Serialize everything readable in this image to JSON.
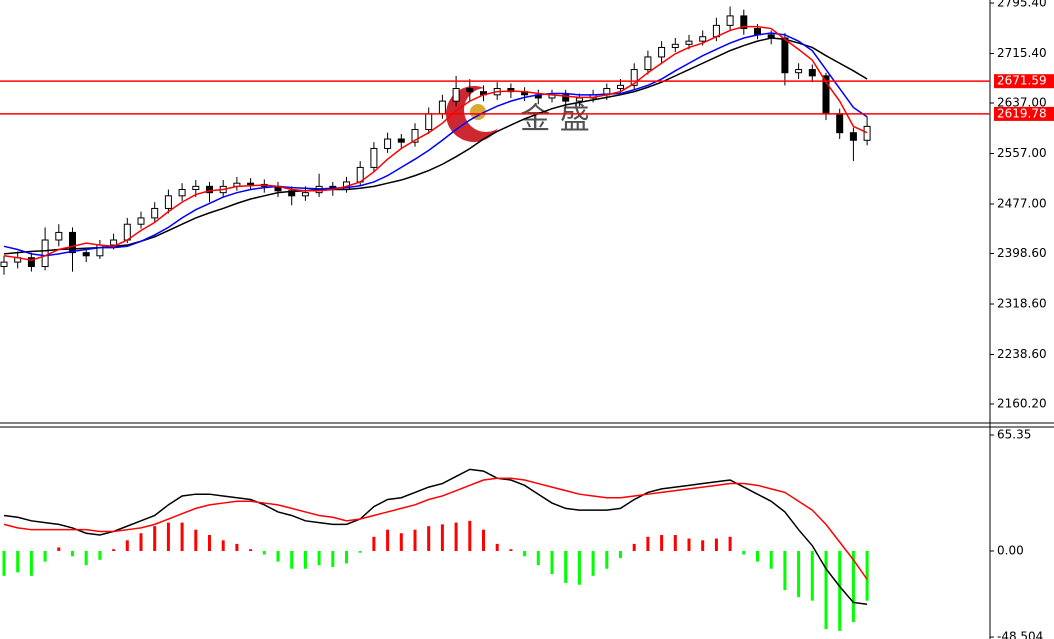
{
  "chart_data": [
    {
      "type": "candlestick",
      "up_color": "#ffffff",
      "down_color": "#000000",
      "edge_color": "#000000",
      "open": [
        2378,
        2385,
        2392,
        2378,
        2420,
        2432,
        2400,
        2395,
        2412,
        2420,
        2445,
        2455,
        2470,
        2490,
        2500,
        2505,
        2495,
        2505,
        2510,
        2508,
        2505,
        2498,
        2490,
        2495,
        2505,
        2500,
        2512,
        2535,
        2565,
        2580,
        2575,
        2595,
        2620,
        2640,
        2660,
        2655,
        2650,
        2660,
        2655,
        2650,
        2645,
        2650,
        2640,
        2645,
        2650,
        2660,
        2665,
        2690,
        2710,
        2725,
        2730,
        2735,
        2742,
        2760,
        2775,
        2755,
        2745,
        2740,
        2685,
        2690,
        2680,
        2620,
        2590,
        2578
      ],
      "high": [
        2395,
        2402,
        2400,
        2440,
        2445,
        2440,
        2408,
        2420,
        2430,
        2455,
        2465,
        2480,
        2500,
        2510,
        2515,
        2512,
        2515,
        2520,
        2518,
        2516,
        2512,
        2505,
        2505,
        2525,
        2512,
        2520,
        2545,
        2575,
        2590,
        2588,
        2605,
        2630,
        2650,
        2680,
        2675,
        2665,
        2670,
        2668,
        2662,
        2658,
        2658,
        2658,
        2652,
        2658,
        2668,
        2675,
        2700,
        2720,
        2735,
        2740,
        2745,
        2752,
        2772,
        2790,
        2785,
        2762,
        2752,
        2748,
        2700,
        2698,
        2685,
        2628,
        2598,
        2615
      ],
      "low": [
        2365,
        2375,
        2370,
        2372,
        2410,
        2370,
        2385,
        2390,
        2405,
        2415,
        2438,
        2448,
        2462,
        2482,
        2488,
        2480,
        2488,
        2498,
        2500,
        2495,
        2488,
        2475,
        2482,
        2488,
        2490,
        2495,
        2505,
        2528,
        2558,
        2565,
        2568,
        2588,
        2612,
        2632,
        2640,
        2640,
        2642,
        2645,
        2640,
        2635,
        2638,
        2630,
        2632,
        2638,
        2642,
        2652,
        2658,
        2682,
        2700,
        2718,
        2722,
        2728,
        2735,
        2752,
        2745,
        2738,
        2730,
        2665,
        2675,
        2670,
        2610,
        2580,
        2545,
        2570
      ],
      "close": [
        2385,
        2392,
        2378,
        2420,
        2432,
        2400,
        2395,
        2412,
        2420,
        2445,
        2455,
        2470,
        2490,
        2500,
        2505,
        2495,
        2505,
        2510,
        2508,
        2505,
        2498,
        2490,
        2495,
        2505,
        2500,
        2512,
        2535,
        2565,
        2580,
        2575,
        2595,
        2620,
        2640,
        2660,
        2655,
        2650,
        2660,
        2655,
        2650,
        2645,
        2650,
        2640,
        2645,
        2650,
        2660,
        2665,
        2690,
        2710,
        2725,
        2730,
        2735,
        2742,
        2760,
        2775,
        2755,
        2745,
        2740,
        2685,
        2690,
        2680,
        2620,
        2590,
        2578,
        2600
      ],
      "series": [
        {
          "color": "#000000",
          "values": [
            2398,
            2400,
            2402,
            2403,
            2405,
            2406,
            2407,
            2408,
            2410,
            2412,
            2418,
            2425,
            2435,
            2445,
            2455,
            2463,
            2470,
            2478,
            2485,
            2490,
            2495,
            2497,
            2498,
            2500,
            2500,
            2500,
            2502,
            2505,
            2510,
            2515,
            2522,
            2530,
            2540,
            2552,
            2565,
            2580,
            2592,
            2602,
            2612,
            2620,
            2628,
            2634,
            2638,
            2642,
            2646,
            2650,
            2655,
            2662,
            2670,
            2680,
            2690,
            2700,
            2710,
            2720,
            2728,
            2735,
            2740,
            2738,
            2732,
            2725,
            2712,
            2700,
            2688,
            2675
          ]
        },
        {
          "color": "#0000ff",
          "values": [
            2410,
            2405,
            2398,
            2395,
            2398,
            2402,
            2405,
            2408,
            2408,
            2410,
            2418,
            2428,
            2440,
            2455,
            2468,
            2478,
            2488,
            2495,
            2500,
            2503,
            2505,
            2503,
            2502,
            2501,
            2502,
            2503,
            2506,
            2512,
            2522,
            2535,
            2548,
            2562,
            2578,
            2595,
            2610,
            2622,
            2632,
            2640,
            2646,
            2650,
            2652,
            2652,
            2650,
            2650,
            2651,
            2652,
            2658,
            2665,
            2675,
            2688,
            2700,
            2712,
            2722,
            2732,
            2740,
            2745,
            2748,
            2745,
            2735,
            2720,
            2690,
            2660,
            2630,
            2615
          ]
        },
        {
          "color": "#ff0000",
          "values": [
            2395,
            2392,
            2388,
            2395,
            2405,
            2410,
            2415,
            2412,
            2410,
            2420,
            2435,
            2448,
            2465,
            2480,
            2492,
            2498,
            2500,
            2505,
            2506,
            2507,
            2505,
            2500,
            2498,
            2498,
            2500,
            2505,
            2512,
            2528,
            2548,
            2565,
            2578,
            2590,
            2605,
            2625,
            2640,
            2650,
            2655,
            2656,
            2655,
            2652,
            2650,
            2648,
            2646,
            2646,
            2650,
            2655,
            2668,
            2685,
            2700,
            2715,
            2725,
            2732,
            2742,
            2752,
            2758,
            2758,
            2755,
            2738,
            2722,
            2705,
            2670,
            2640,
            2600,
            2590
          ]
        }
      ],
      "hlines": [
        2671.59,
        2619.78
      ],
      "hline_color": "#ff0000",
      "ylim": [
        2131.7,
        2800.2
      ],
      "yticks": [
        {
          "value": 2795.4,
          "label": "2795.40"
        },
        {
          "value": 2715.4,
          "label": "2715.40"
        },
        {
          "value": 2637,
          "label": "2637.00"
        },
        {
          "value": 2557,
          "label": "2557.00"
        },
        {
          "value": 2477,
          "label": "2477.00"
        },
        {
          "value": 2398.6,
          "label": "2398.60"
        },
        {
          "value": 2318.6,
          "label": "2318.60"
        },
        {
          "value": 2238.6,
          "label": "2238.60"
        },
        {
          "value": 2160.2,
          "label": "2160.20"
        }
      ],
      "watermark": "金 盛"
    },
    {
      "type": "macd",
      "positive_color": "#ff0000",
      "negative_color": "#00ff00",
      "histogram": [
        -14,
        -12,
        -14,
        -6,
        2,
        -3,
        -8,
        -5,
        1,
        6,
        10,
        14,
        16,
        16,
        12,
        9,
        6,
        4,
        1,
        -2,
        -6,
        -10,
        -10,
        -8,
        -9,
        -7,
        -1,
        8,
        12,
        10,
        12,
        14,
        15,
        16,
        17,
        12,
        4,
        1,
        -3,
        -8,
        -13,
        -18,
        -19,
        -14,
        -10,
        -4,
        4,
        8,
        9,
        9,
        7,
        6,
        7,
        8,
        -2,
        -6,
        -10,
        -22,
        -26,
        -28,
        -44,
        -45,
        -40,
        -28
      ],
      "series": [
        {
          "color": "#000000",
          "values": [
            20,
            19,
            17,
            16,
            15,
            13,
            10,
            9,
            11,
            14,
            17,
            20,
            26,
            31,
            32,
            32,
            31,
            30,
            29,
            26,
            22,
            20,
            17,
            16,
            15,
            15,
            18,
            25,
            29,
            30,
            33,
            36,
            38,
            42,
            46,
            45,
            41,
            40,
            37,
            32,
            27,
            24,
            23,
            23,
            23,
            24,
            29,
            33,
            35,
            36,
            37,
            38,
            39,
            40,
            36,
            32,
            28,
            22,
            12,
            3,
            -10,
            -20,
            -29,
            -30
          ]
        },
        {
          "color": "#ff0000",
          "values": [
            15,
            13,
            12,
            12,
            12,
            12,
            12,
            11,
            11,
            12,
            13,
            15,
            18,
            21,
            24,
            26,
            27,
            28,
            28,
            27,
            26,
            24,
            22,
            20,
            19,
            17,
            18,
            20,
            22,
            24,
            26,
            29,
            31,
            34,
            37,
            40,
            41,
            41,
            40,
            38,
            36,
            34,
            32,
            31,
            30,
            30,
            31,
            32,
            33,
            34,
            35,
            36,
            37,
            38,
            38,
            37,
            35,
            33,
            28,
            23,
            15,
            5,
            -5,
            -16
          ]
        }
      ],
      "ylim": [
        -49.6,
        69.3
      ],
      "yticks": [
        65.35,
        {
          "value": 0,
          "label": "0.00"
        },
        -48.504
      ]
    }
  ]
}
